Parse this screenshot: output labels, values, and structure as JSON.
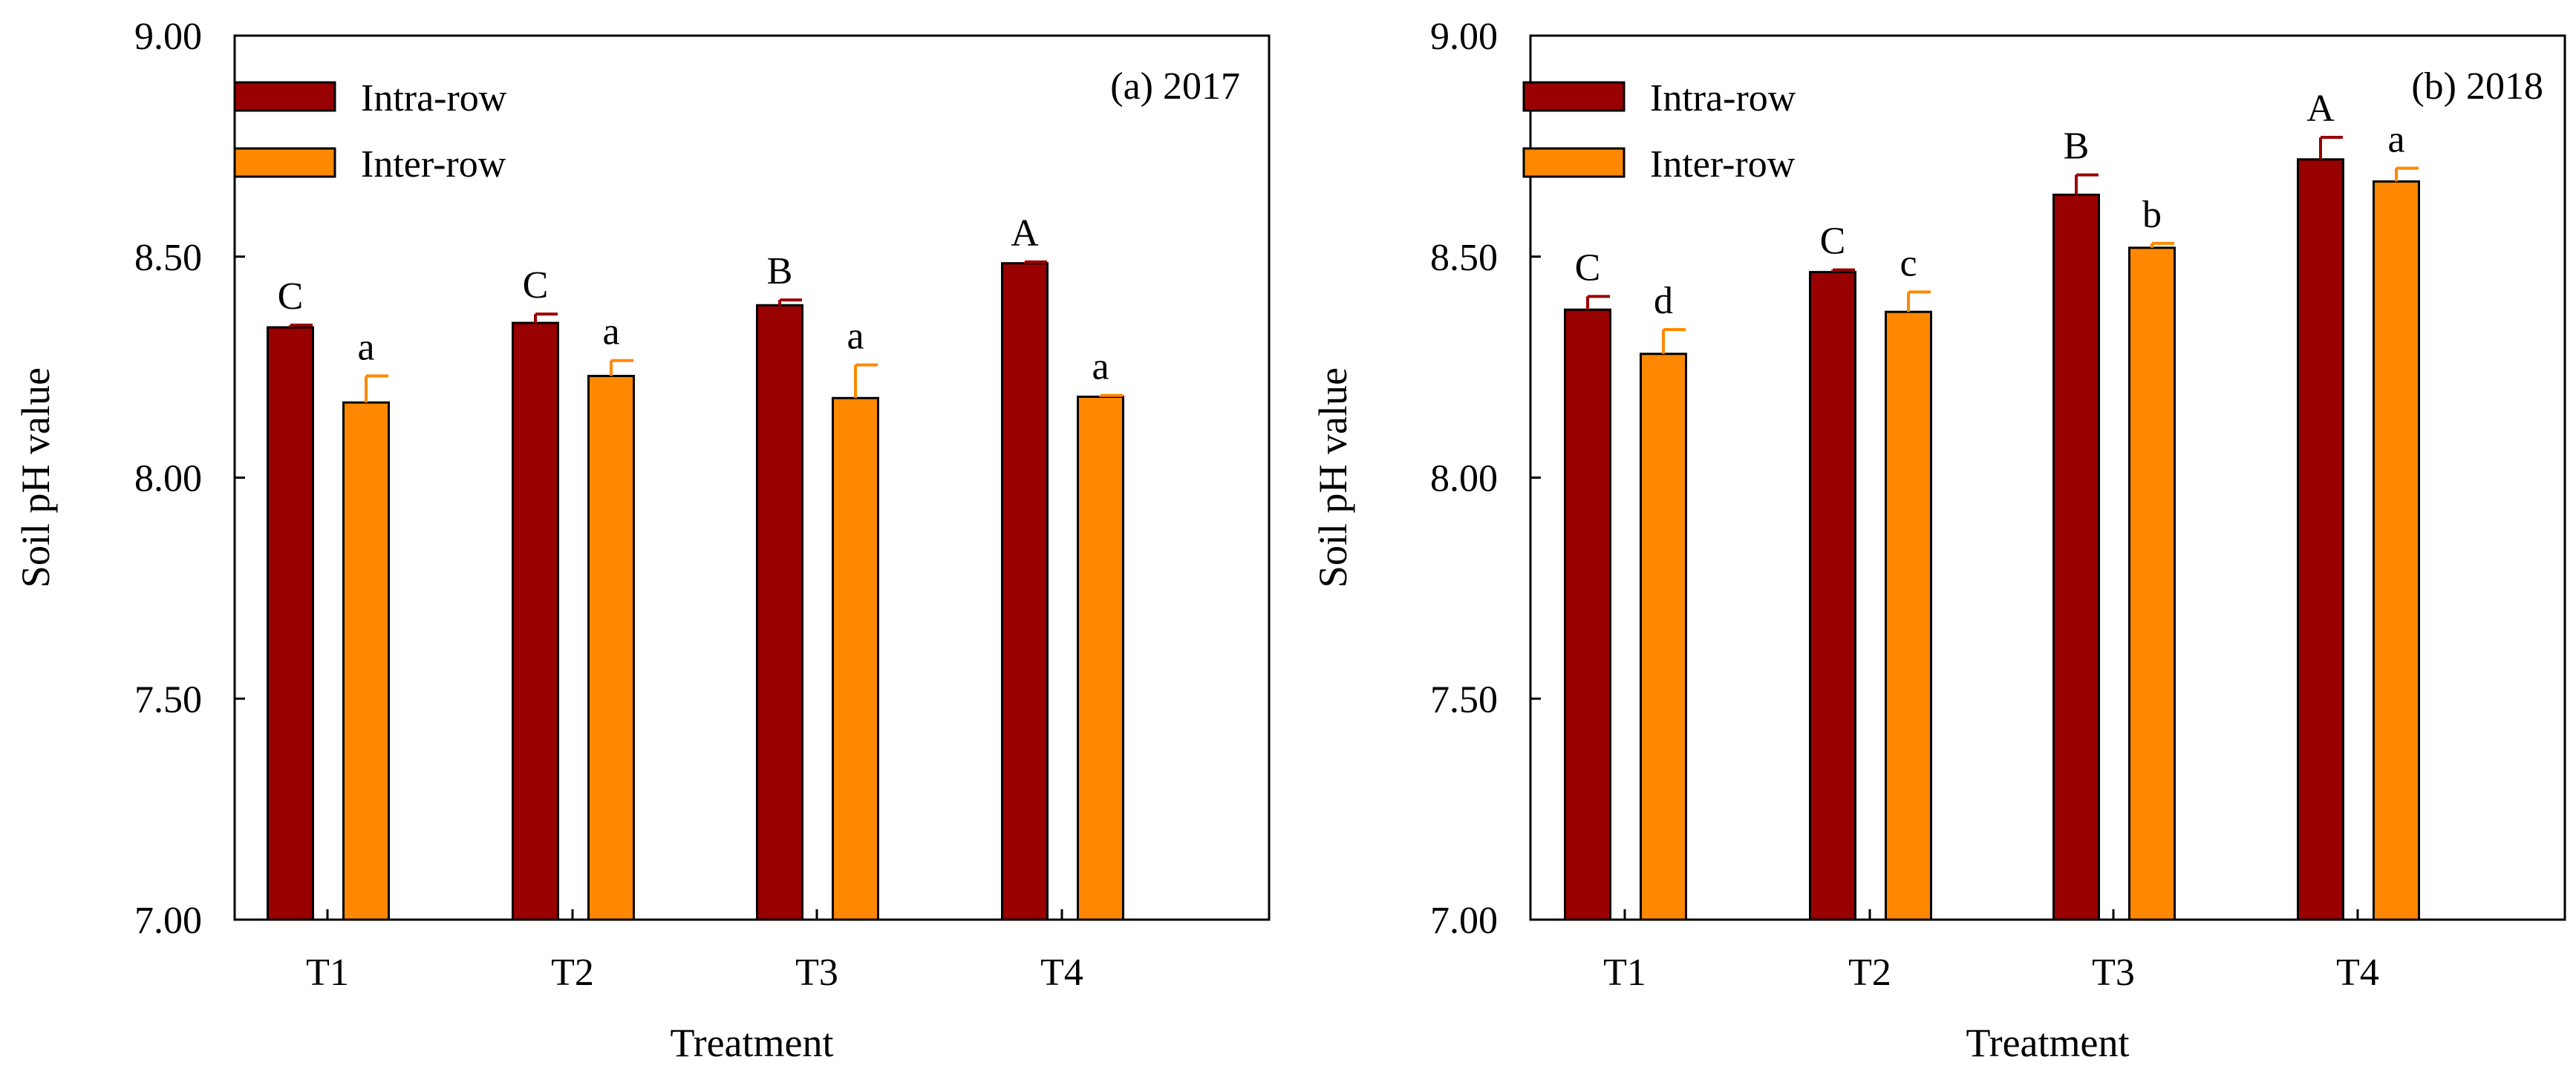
{
  "chart_data": [
    {
      "type": "bar",
      "panel_label": "(a) 2017",
      "xlabel": "Treatment",
      "ylabel": "Soil pH value",
      "ylim": [
        7.0,
        9.0
      ],
      "yticks": [
        "7.00",
        "7.50",
        "8.00",
        "8.50",
        "9.00"
      ],
      "categories": [
        "T1",
        "T2",
        "T3",
        "T4"
      ],
      "legend_position": "top-left",
      "series": [
        {
          "name": "Intra-row",
          "color": "#990000",
          "values": [
            8.34,
            8.35,
            8.39,
            8.485
          ],
          "errors": [
            0.005,
            0.02,
            0.012,
            0.003
          ],
          "letters": [
            "C",
            "C",
            "B",
            "A"
          ]
        },
        {
          "name": "Inter-row",
          "color": "#FF8800",
          "values": [
            8.17,
            8.23,
            8.18,
            8.183
          ],
          "errors": [
            0.06,
            0.035,
            0.075,
            0.003
          ],
          "letters": [
            "a",
            "a",
            "a",
            "a"
          ]
        }
      ]
    },
    {
      "type": "bar",
      "panel_label": "(b) 2018",
      "xlabel": "Treatment",
      "ylabel": "Soil pH value",
      "ylim": [
        7.0,
        9.0
      ],
      "yticks": [
        "7.00",
        "7.50",
        "8.00",
        "8.50",
        "9.00"
      ],
      "categories": [
        "T1",
        "T2",
        "T3",
        "T4"
      ],
      "legend_position": "top-left",
      "series": [
        {
          "name": "Intra-row",
          "color": "#990000",
          "values": [
            8.38,
            8.465,
            8.64,
            8.72
          ],
          "errors": [
            0.03,
            0.005,
            0.045,
            0.05
          ],
          "letters": [
            "C",
            "C",
            "B",
            "A"
          ]
        },
        {
          "name": "Inter-row",
          "color": "#FF8800",
          "values": [
            8.28,
            8.375,
            8.52,
            8.67
          ],
          "errors": [
            0.055,
            0.045,
            0.01,
            0.03
          ],
          "letters": [
            "d",
            "c",
            "b",
            "a"
          ]
        }
      ]
    }
  ]
}
